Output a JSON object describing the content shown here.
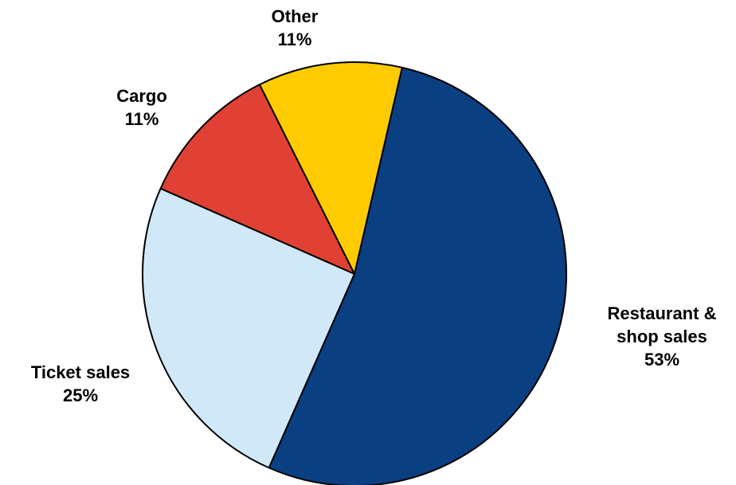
{
  "chart_data": {
    "type": "pie",
    "title": "",
    "start_angle_deg": 13,
    "direction": "clockwise",
    "slices": [
      {
        "name": "Restaurant & shop sales",
        "label_lines": [
          "Restaurant &",
          "shop sales"
        ],
        "value": 53,
        "value_label": "53%",
        "color": "#0a3f82"
      },
      {
        "name": "Ticket sales",
        "label_lines": [
          "Ticket sales"
        ],
        "value": 25,
        "value_label": "25%",
        "color": "#d0e8f8"
      },
      {
        "name": "Cargo",
        "label_lines": [
          "Cargo"
        ],
        "value": 11,
        "value_label": "11%",
        "color": "#e04134"
      },
      {
        "name": "Other",
        "label_lines": [
          "Other"
        ],
        "value": 11,
        "value_label": "11%",
        "color": "#fecb00"
      }
    ]
  }
}
